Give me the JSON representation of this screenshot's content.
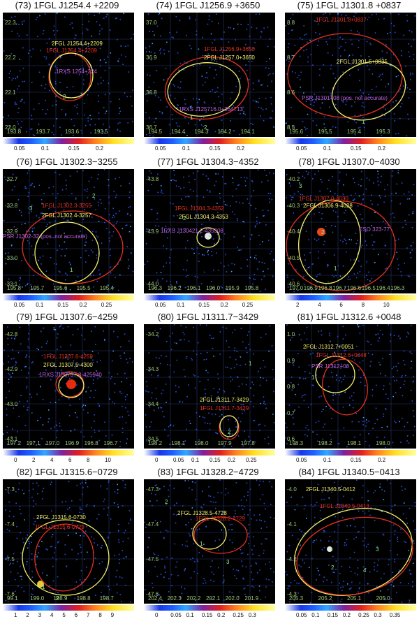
{
  "panels": [
    {
      "title": "(73) 1FGL J1254.4 +2209",
      "yticks": [
        "22.3",
        "22.2",
        "22.1",
        "22.0"
      ],
      "xticks": [
        "193.8",
        "193.7",
        "193.6",
        "193.5"
      ],
      "labels": [
        {
          "text": "2FGL J1254.4+2209",
          "color": "yellow"
        },
        {
          "text": "1FGL J1254.4+2209",
          "color": "red"
        },
        {
          "text": "1RXS 1254+224",
          "color": "magenta"
        }
      ],
      "numbers": [
        "2"
      ],
      "cbar_ticks": [
        "0.05",
        "0.1",
        "0.15",
        "0.2"
      ]
    },
    {
      "title": "(74) 1FGL J1256.9 +3650",
      "yticks": [
        "37.0",
        "36.9",
        "36.8",
        "36.7"
      ],
      "xticks": [
        "194.5",
        "194.4",
        "194.3",
        "194.2",
        "194.1"
      ],
      "labels": [
        {
          "text": "1FGL J1256.9+3650",
          "color": "red"
        },
        {
          "text": "2FGL J1257.0+3650",
          "color": "yellow"
        },
        {
          "text": "1RXS J125716.0+364713",
          "color": "magenta"
        }
      ],
      "numbers": [
        "1",
        "2"
      ],
      "cbar_ticks": [
        "0.05",
        "0.1",
        "0.15",
        "0.2"
      ]
    },
    {
      "title": "(75) 1FGL J1301.8 +0837",
      "yticks": [
        "8.8",
        "8.7",
        "8.6",
        "8.5"
      ],
      "xticks": [
        "195.6",
        "195.5",
        "195.4",
        "195.3"
      ],
      "labels": [
        {
          "text": "1FGL J1301.8+0837",
          "color": "red"
        },
        {
          "text": "2FGL J1301.5+0835",
          "color": "yellow"
        },
        {
          "text": "PSR J1301+08 (pos. not accurate)",
          "color": "magenta"
        }
      ],
      "numbers": [
        "1"
      ],
      "cbar_ticks": [
        "0.05",
        "0.1",
        "0.15",
        "0.2"
      ]
    },
    {
      "title": "(76) 1FGL J1302.3−3255",
      "yticks": [
        "-32.7",
        "-32.8",
        "-32.9",
        "-33.0",
        "-33.1"
      ],
      "xticks": [
        "195.8",
        "195.7",
        "195.6",
        "195.5",
        "195.4"
      ],
      "labels": [
        {
          "text": "1FGL J1302.3-3255",
          "color": "red"
        },
        {
          "text": "2FGL J1302.4-3257",
          "color": "yellow"
        },
        {
          "text": "PSR J1302-32 (pos. not accurate)",
          "color": "magenta"
        }
      ],
      "numbers": [
        "2",
        "3",
        "1"
      ],
      "cbar_ticks": [
        "0.05",
        "0.1",
        "0.15",
        "0.2",
        "0.25"
      ]
    },
    {
      "title": "(77) 1FGL J1304.3−4352",
      "yticks": [
        "-43.8",
        "-43.9",
        "-44.0"
      ],
      "xticks": [
        "196.3",
        "196.2",
        "196.1",
        "196.0",
        "195.9",
        "195.8"
      ],
      "labels": [
        {
          "text": "1FGL J1304.3-4352",
          "color": "red"
        },
        {
          "text": "2FGL J1304.3-4353",
          "color": "yellow"
        },
        {
          "text": "1RXS J130421.2-435308",
          "color": "magenta"
        }
      ],
      "numbers": [
        "2",
        "1"
      ],
      "cbar_ticks": [
        "0.05",
        "0.1",
        "0.15",
        "0.2",
        "0.25"
      ]
    },
    {
      "title": "(78) 1FGL J1307.0−4030",
      "yticks": [
        "-40.2",
        "-40.3",
        "-40.4",
        "-40.5",
        "-40.6"
      ],
      "xticks": [
        "197.0",
        "196.9",
        "196.8",
        "196.7",
        "196.6",
        "196.5",
        "196.4",
        "196.3"
      ],
      "labels": [
        {
          "text": "1FGL J1307.0-4030",
          "color": "red"
        },
        {
          "text": "2FGL J1306.9-4028",
          "color": "yellow"
        },
        {
          "text": "ESO 323-77",
          "color": "magenta"
        }
      ],
      "numbers": [
        "2",
        "1",
        "3"
      ],
      "cbar_ticks": [
        "2",
        "4",
        "6",
        "8",
        "10"
      ]
    },
    {
      "title": "(79) 1FGL J1307.6−4259",
      "yticks": [
        "-42.8",
        "-42.9",
        "-43.0",
        "-43.1"
      ],
      "xticks": [
        "197.2",
        "197.1",
        "197.0",
        "196.9",
        "196.8",
        "196.7"
      ],
      "labels": [
        {
          "text": "1FGL J1307.6-4259",
          "color": "red"
        },
        {
          "text": "2FGL J1307.5-4300",
          "color": "yellow"
        },
        {
          "text": "1RXS J130737.8-425940",
          "color": "magenta"
        }
      ],
      "numbers": [],
      "cbar_ticks": [
        "0",
        "2",
        "4",
        "6",
        "8",
        "10"
      ]
    },
    {
      "title": "(80) 1FGL J1311.7−3429",
      "yticks": [
        "-34.2",
        "-34.3",
        "-34.4",
        "-34.5"
      ],
      "xticks": [
        "198.2",
        "198.1",
        "198.0",
        "197.9",
        "197.8"
      ],
      "labels": [
        {
          "text": "2FGL J1311.7-3429",
          "color": "yellow"
        },
        {
          "text": "1FGL J1311.7-3429",
          "color": "red"
        }
      ],
      "numbers": [
        "1",
        "2"
      ],
      "cbar_ticks": [
        "0",
        "0.05",
        "0.1",
        "0.15",
        "0.2",
        "0.25"
      ]
    },
    {
      "title": "(81) 1FGL J1312.6 +0048",
      "yticks": [
        "1.0",
        "0.9",
        "0.8",
        "0.7",
        "0.6"
      ],
      "xticks": [
        "198.3",
        "198.2",
        "198.1",
        "198.0"
      ],
      "labels": [
        {
          "text": "2FGL J1312.7+0051",
          "color": "yellow"
        },
        {
          "text": "1FGL J1312.6+0048",
          "color": "red"
        },
        {
          "text": "PSR J1312+00",
          "color": "magenta"
        }
      ],
      "numbers": [
        "1"
      ],
      "cbar_ticks": [
        "0.05",
        "0.1",
        "0.15",
        "0.2"
      ]
    },
    {
      "title": "(82) 1FGL J1315.6−0729",
      "yticks": [
        "-7.3",
        "-7.4",
        "-7.5",
        "-7.6"
      ],
      "xticks": [
        "99.1",
        "199.0",
        "198.9",
        "198.8",
        "198.7"
      ],
      "labels": [
        {
          "text": "2FGL J1315.6-0730",
          "color": "yellow"
        },
        {
          "text": "1FGL J1315.6-0729",
          "color": "red"
        }
      ],
      "numbers": [
        "1",
        "2"
      ],
      "cbar_ticks": [
        "1",
        "2",
        "3",
        "4",
        "5",
        "6",
        "7",
        "8",
        "9"
      ]
    },
    {
      "title": "(83) 1FGL J1328.2−4729",
      "yticks": [
        "-47.3",
        "-47.4",
        "-47.5",
        "-47.6"
      ],
      "xticks": [
        "202.4",
        "202.3",
        "202.2",
        "202.1",
        "202.0",
        "201.9"
      ],
      "labels": [
        {
          "text": "2FGL J1328.5-4728",
          "color": "yellow"
        },
        {
          "text": "1FGL J1328.2-4729",
          "color": "red"
        }
      ],
      "numbers": [
        "2",
        "1",
        "3"
      ],
      "cbar_ticks": [
        "0",
        "0.05",
        "0.1",
        "0.15",
        "0.2",
        "0.25",
        "0.3"
      ]
    },
    {
      "title": "(84) 1FGL J1340.5−0413",
      "yticks": [
        "-4.0",
        "-4.1",
        "-4.2",
        "-4.3"
      ],
      "xticks": [
        "205.3",
        "205.2",
        "205.1",
        "205.0"
      ],
      "labels": [
        {
          "text": "2FGL J1340.5-0412",
          "color": "yellow"
        },
        {
          "text": "1FGL J1340.5-0413",
          "color": "red"
        }
      ],
      "numbers": [
        "1",
        "3",
        "2",
        "4"
      ],
      "cbar_ticks": [
        "0.05",
        "0.1",
        "0.15",
        "0.2",
        "0.25",
        "0.3",
        "0.35"
      ]
    }
  ]
}
